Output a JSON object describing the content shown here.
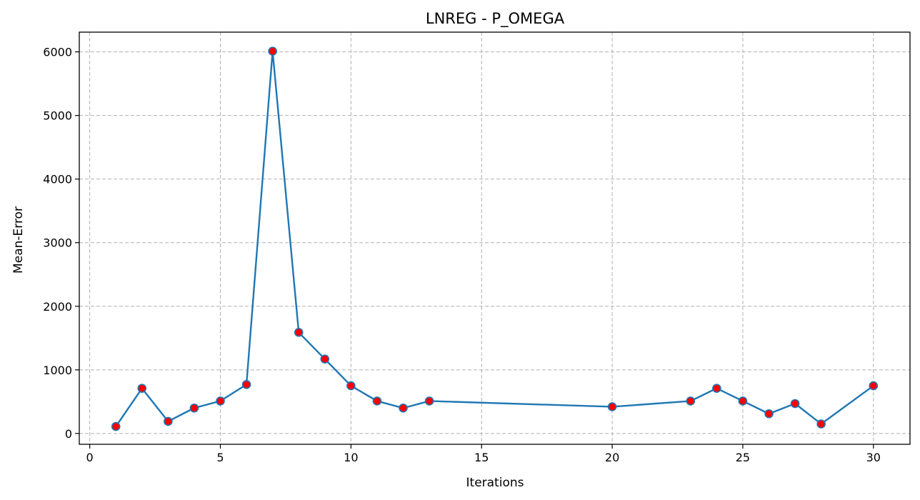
{
  "chart_data": {
    "type": "line",
    "title": "LNREG - P_OMEGA",
    "xlabel": "Iterations",
    "ylabel": "Mean-Error",
    "xlim": [
      -0.4,
      31.4
    ],
    "ylim": [
      -170,
      6310
    ],
    "xticks": [
      0,
      5,
      10,
      15,
      20,
      25,
      30
    ],
    "yticks": [
      0,
      1000,
      2000,
      3000,
      4000,
      5000,
      6000
    ],
    "grid": true,
    "line_color": "#1f77b4",
    "marker_face_color": "#ff0000",
    "marker_edge_color": "#1f77b4",
    "series": [
      {
        "x": [
          1,
          2,
          3,
          4,
          5,
          6,
          7,
          8,
          9,
          10,
          11,
          12,
          13,
          20,
          23,
          24,
          25,
          26,
          27,
          28,
          30
        ],
        "y": [
          110,
          710,
          190,
          400,
          510,
          770,
          6010,
          1590,
          1170,
          750,
          510,
          400,
          510,
          420,
          510,
          710,
          510,
          310,
          470,
          150,
          750
        ]
      }
    ]
  }
}
